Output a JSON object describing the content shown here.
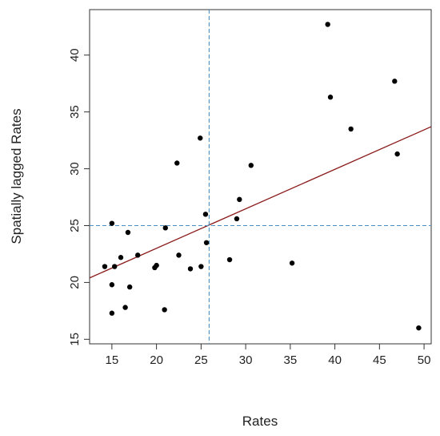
{
  "chart_data": {
    "type": "scatter",
    "title": "",
    "xlabel": "Rates",
    "ylabel": "Spatially lagged Rates",
    "xlim": [
      12.5,
      50.8
    ],
    "ylim": [
      14.6,
      44.0
    ],
    "xticks": [
      "15",
      "20",
      "25",
      "30",
      "35",
      "40",
      "45",
      "50"
    ],
    "yticks": [
      "15",
      "20",
      "25",
      "30",
      "35",
      "40"
    ],
    "grid": false,
    "legend": "none",
    "points": [
      {
        "x": 14.2,
        "y": 21.4
      },
      {
        "x": 15.0,
        "y": 25.2
      },
      {
        "x": 15.0,
        "y": 19.8
      },
      {
        "x": 15.0,
        "y": 17.3
      },
      {
        "x": 15.3,
        "y": 21.4
      },
      {
        "x": 16.0,
        "y": 22.2
      },
      {
        "x": 16.5,
        "y": 17.8
      },
      {
        "x": 16.8,
        "y": 24.4
      },
      {
        "x": 17.0,
        "y": 19.6
      },
      {
        "x": 17.9,
        "y": 22.4
      },
      {
        "x": 19.8,
        "y": 21.3
      },
      {
        "x": 20.0,
        "y": 21.5
      },
      {
        "x": 20.9,
        "y": 17.6
      },
      {
        "x": 21.0,
        "y": 24.8
      },
      {
        "x": 22.3,
        "y": 30.5
      },
      {
        "x": 22.5,
        "y": 22.4
      },
      {
        "x": 23.8,
        "y": 21.2
      },
      {
        "x": 24.9,
        "y": 32.7
      },
      {
        "x": 25.0,
        "y": 21.4
      },
      {
        "x": 25.5,
        "y": 26.0
      },
      {
        "x": 25.6,
        "y": 23.5
      },
      {
        "x": 28.2,
        "y": 22.0
      },
      {
        "x": 29.0,
        "y": 25.6
      },
      {
        "x": 29.3,
        "y": 27.3
      },
      {
        "x": 30.6,
        "y": 30.3
      },
      {
        "x": 35.2,
        "y": 21.7
      },
      {
        "x": 39.2,
        "y": 42.7
      },
      {
        "x": 39.5,
        "y": 36.3
      },
      {
        "x": 41.8,
        "y": 33.5
      },
      {
        "x": 46.7,
        "y": 37.7
      },
      {
        "x": 47.0,
        "y": 31.3
      },
      {
        "x": 49.4,
        "y": 16.0
      }
    ],
    "regression_line": {
      "x": [
        12.5,
        50.8
      ],
      "y": [
        20.4,
        33.7
      ],
      "color": "#8b1a1a"
    },
    "reference_lines": {
      "vline_x": 25.9,
      "hline_y": 25.0,
      "color": "#4a8fc0"
    },
    "point_color": "#000000"
  }
}
